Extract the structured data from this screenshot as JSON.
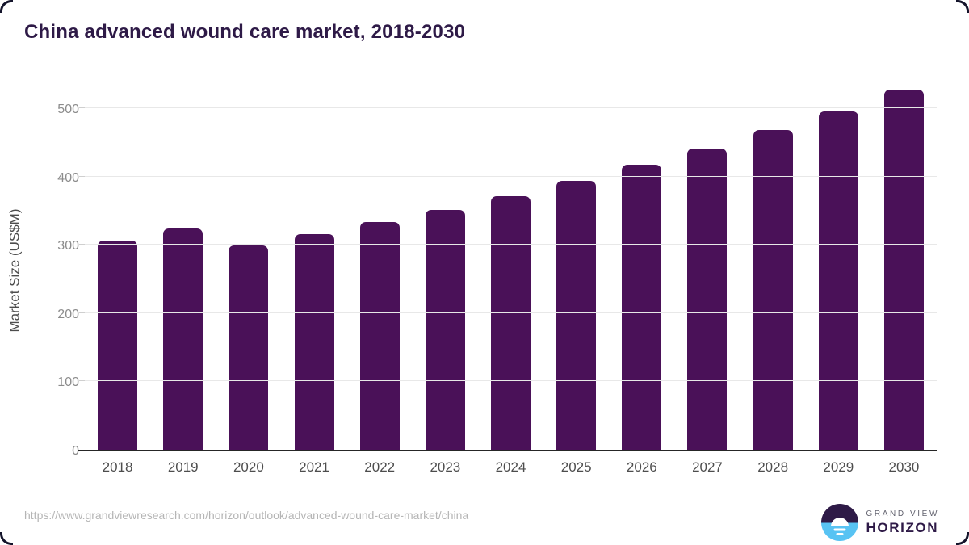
{
  "page": {
    "title": "China advanced wound care market, 2018-2030",
    "source_url": "https://www.grandviewresearch.com/horizon/outlook/advanced-wound-care-market/china"
  },
  "logo": {
    "line1": "GRAND VIEW",
    "line2": "HORIZON",
    "icon": "sun-over-horizon-circle"
  },
  "colors": {
    "bar": "#4a1158",
    "title": "#2e1a47",
    "axis_label": "#4d4d4d",
    "tick_label": "#8c8c8c",
    "gridline": "#e8e8e8",
    "baseline": "#262626",
    "url_text": "#b5b5b5",
    "logo_dark": "#2e1a47",
    "logo_blue": "#58c3f3"
  },
  "chart_data": {
    "type": "bar",
    "title": "China advanced wound care market, 2018-2030",
    "categories": [
      "2018",
      "2019",
      "2020",
      "2021",
      "2022",
      "2023",
      "2024",
      "2025",
      "2026",
      "2027",
      "2028",
      "2029",
      "2030"
    ],
    "values": [
      308,
      325,
      300,
      317,
      335,
      353,
      373,
      396,
      419,
      443,
      470,
      498,
      530
    ],
    "xlabel": "",
    "ylabel": "Market Size (US$M)",
    "ylim": [
      0,
      531
    ],
    "yticks": [
      0,
      100,
      200,
      300,
      400,
      500
    ],
    "grid": true,
    "legend": false,
    "bar_color": "#4a1158"
  }
}
